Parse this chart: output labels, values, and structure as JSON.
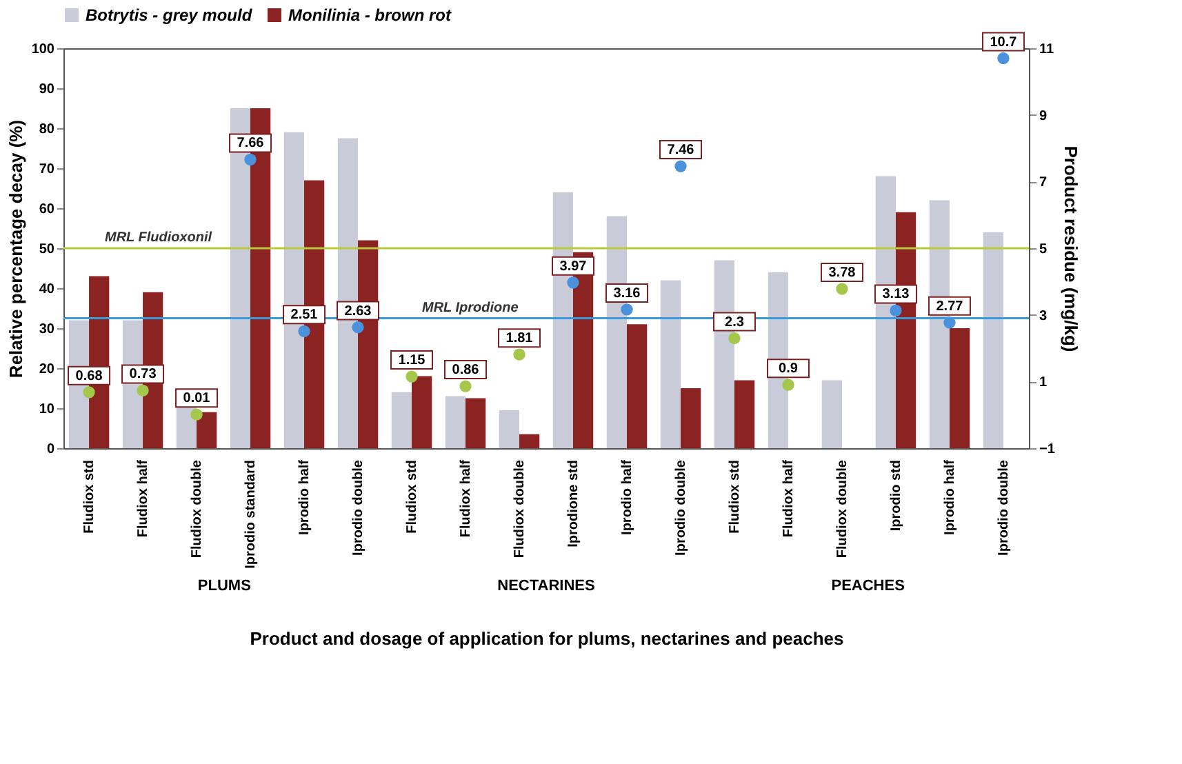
{
  "chart_data": {
    "type": "bar",
    "xlabel": "Product and dosage of application for plums, nectarines and peaches",
    "ylabel": "Relative percentage decay (%)",
    "y2label": "Product residue (mg/kg)",
    "categories": [
      "Fludiox std",
      "Fludiox half",
      "Fludiox double",
      "Iprodio standard",
      "Iprodio half",
      "Iprodio double",
      "Fludiox std",
      "Fludiox half",
      "Fludiox double",
      "Iprodione std",
      "Iprodio half",
      "Iprodio double",
      "Fludiox std",
      "Fludiox half",
      "Fludiox double",
      "Iprodio std",
      "Iprodio half",
      "Iprodio double"
    ],
    "series": [
      {
        "name": "Botrytis - grey mould",
        "color": "#c9cbd9",
        "values": [
          32,
          32,
          11,
          85,
          79,
          77.5,
          14,
          13,
          9.5,
          64,
          58,
          42,
          47,
          44,
          17,
          68,
          62,
          54
        ]
      },
      {
        "name": "Monilinia - brown rot",
        "color": "#8c2323",
        "values": [
          43,
          39,
          9,
          85,
          67,
          52,
          18,
          12.5,
          3.5,
          49,
          31,
          15,
          17,
          0,
          0,
          59,
          30,
          0
        ]
      },
      {
        "type": "scatter",
        "axis": "y2",
        "color": "#a5c84c",
        "marker": "circle",
        "values": [
          0.68,
          0.73,
          0.01,
          null,
          null,
          null,
          1.15,
          0.86,
          1.81,
          null,
          null,
          null,
          2.3,
          0.9,
          3.78,
          null,
          null,
          null
        ],
        "value_labels": [
          "0.68",
          "0.73",
          "0.01",
          null,
          null,
          null,
          "1.15",
          "0.86",
          "1.81",
          null,
          null,
          null,
          "2.3",
          "0.9",
          "3.78",
          null,
          null,
          null
        ]
      },
      {
        "type": "scatter",
        "axis": "y2",
        "color": "#4a92dc",
        "marker": "circle",
        "values": [
          null,
          null,
          null,
          7.66,
          2.51,
          2.63,
          null,
          null,
          null,
          3.97,
          3.16,
          7.46,
          null,
          null,
          null,
          3.13,
          2.77,
          10.7
        ],
        "value_labels": [
          null,
          null,
          null,
          "7.66",
          "2.51",
          "2.63",
          null,
          null,
          null,
          "3.97",
          "3.16",
          "7.46",
          null,
          null,
          null,
          "3.13",
          "2.77",
          "10.7"
        ]
      }
    ],
    "ylim": [
      0,
      100
    ],
    "yticks": [
      0,
      10,
      20,
      30,
      40,
      50,
      60,
      70,
      80,
      90,
      100
    ],
    "y2lim": [
      -1,
      11
    ],
    "y2ticks": [
      -1,
      1,
      3,
      5,
      7,
      9,
      11
    ],
    "ref_lines": [
      {
        "axis": "y2",
        "value": 5,
        "label": "MRL Fludioxonil",
        "color": "#b8c93a"
      },
      {
        "axis": "y2",
        "value": 2.9,
        "label": "MRL Iprodione",
        "color": "#3a9ad9"
      }
    ],
    "annotations": [
      "PLUMS",
      "NECTARINES",
      "PEACHES"
    ],
    "legend": "top",
    "grid": false
  }
}
